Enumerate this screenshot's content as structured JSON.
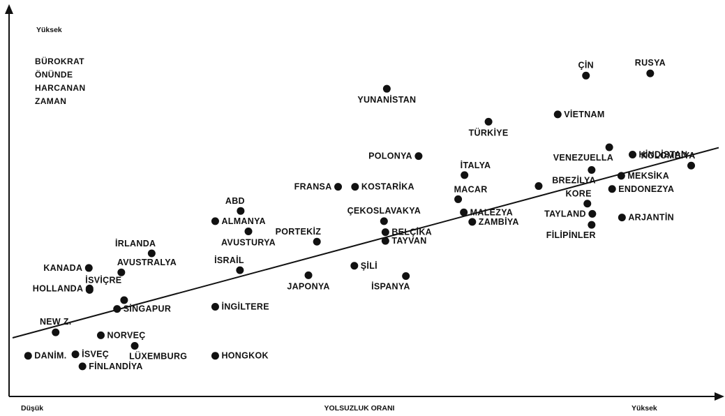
{
  "chart_data": {
    "type": "scatter",
    "xlabel": "YOLSUZLUK ORANI",
    "x_low_label": "Düşük",
    "x_high_label": "Yüksek",
    "ylabel_lines": [
      "BÜROKRAT",
      "ÖNÜNDE",
      "HARCANAN",
      "ZAMAN"
    ],
    "y_high_label": "Yüksek",
    "xlim": [
      0,
      100
    ],
    "ylim": [
      0,
      100
    ],
    "grid": false,
    "legend": "none",
    "trendline": {
      "x": [
        0,
        100
      ],
      "y": [
        14.5,
        66.5
      ]
    },
    "points": [
      {
        "label": "DANİM.",
        "x": 2.2,
        "y": 9.6,
        "label_side": "right"
      },
      {
        "label": "İSVEÇ",
        "x": 8.9,
        "y": 10.0,
        "label_side": "right"
      },
      {
        "label": "FİNLANDİYA",
        "x": 9.9,
        "y": 6.7,
        "label_side": "right"
      },
      {
        "label": "NEW Z.",
        "x": 6.1,
        "y": 16.0,
        "label_side": "above"
      },
      {
        "label": "NORVEÇ",
        "x": 12.5,
        "y": 15.2,
        "label_side": "right"
      },
      {
        "label": "LÜXEMBURG",
        "x": 17.3,
        "y": 12.3,
        "label_side": "below-right"
      },
      {
        "label": "SİNGAPUR",
        "x": 14.8,
        "y": 22.4,
        "label_side": "right"
      },
      {
        "label": "",
        "x": 15.8,
        "y": 24.8,
        "label_side": "none"
      },
      {
        "label": "İSVİÇRE",
        "x": 10.9,
        "y": 27.6,
        "label_side": "above-right"
      },
      {
        "label": "HOLLANDA",
        "x": 10.9,
        "y": 28.0,
        "label_side": "left"
      },
      {
        "label": "AVUSTRALYA",
        "x": 15.4,
        "y": 32.4,
        "label_side": "above-right"
      },
      {
        "label": "KANADA",
        "x": 10.8,
        "y": 33.6,
        "label_side": "left"
      },
      {
        "label": "İRLANDA",
        "x": 19.7,
        "y": 37.6,
        "label_side": "above-left"
      },
      {
        "label": "HONGKOK",
        "x": 28.7,
        "y": 9.6,
        "label_side": "right"
      },
      {
        "label": "İNGİLTERE",
        "x": 28.7,
        "y": 23.0,
        "label_side": "right"
      },
      {
        "label": "İSRAİL",
        "x": 32.2,
        "y": 33.0,
        "label_side": "above-left"
      },
      {
        "label": "ALMANYA",
        "x": 28.7,
        "y": 46.4,
        "label_side": "right"
      },
      {
        "label": "ABD",
        "x": 32.3,
        "y": 49.2,
        "label_side": "above-left"
      },
      {
        "label": "AVUSTURYA",
        "x": 33.4,
        "y": 43.6,
        "label_side": "below"
      },
      {
        "label": "PORTEKİZ",
        "x": 43.1,
        "y": 40.8,
        "label_side": "above-left"
      },
      {
        "label": "JAPONYA",
        "x": 41.9,
        "y": 31.6,
        "label_side": "below"
      },
      {
        "label": "FRANSA",
        "x": 46.1,
        "y": 55.8,
        "label_side": "left"
      },
      {
        "label": "KOSTARİKA",
        "x": 48.5,
        "y": 55.8,
        "label_side": "right"
      },
      {
        "label": "ŞİLİ",
        "x": 48.4,
        "y": 34.2,
        "label_side": "right"
      },
      {
        "label": "İSPANYA",
        "x": 55.7,
        "y": 31.4,
        "label_side": "below-left"
      },
      {
        "label": "ÇEKOSLAVAKYA",
        "x": 52.6,
        "y": 46.4,
        "label_side": "above"
      },
      {
        "label": "BELÇİKA",
        "x": 52.8,
        "y": 43.4,
        "label_side": "right"
      },
      {
        "label": "TAYVAN",
        "x": 52.8,
        "y": 41.0,
        "label_side": "right"
      },
      {
        "label": "YUNANİSTAN",
        "x": 53.0,
        "y": 82.6,
        "label_side": "below"
      },
      {
        "label": "POLONYA",
        "x": 57.5,
        "y": 64.2,
        "label_side": "left"
      },
      {
        "label": "TÜRKİYE",
        "x": 67.4,
        "y": 73.6,
        "label_side": "below"
      },
      {
        "label": "İTALYA",
        "x": 64.0,
        "y": 59.0,
        "label_side": "above-right"
      },
      {
        "label": "MACAR",
        "x": 63.1,
        "y": 52.4,
        "label_side": "above-right"
      },
      {
        "label": "MALEZYA",
        "x": 63.9,
        "y": 48.8,
        "label_side": "right"
      },
      {
        "label": "ZAMBİYA",
        "x": 65.1,
        "y": 46.2,
        "label_side": "right"
      },
      {
        "label": "ÇİN",
        "x": 81.2,
        "y": 86.2,
        "label_side": "above"
      },
      {
        "label": "RUSYA",
        "x": 90.3,
        "y": 86.8,
        "label_side": "above"
      },
      {
        "label": "VİETNAM",
        "x": 77.2,
        "y": 75.6,
        "label_side": "right"
      },
      {
        "label": "VENEZUELLA",
        "x": 84.5,
        "y": 66.6,
        "label_side": "below-left"
      },
      {
        "label": "HİNDİSTAN",
        "x": 87.8,
        "y": 64.6,
        "label_side": "right"
      },
      {
        "label": "KOLOMBİYA",
        "x": 96.1,
        "y": 61.6,
        "label_side": "above-left"
      },
      {
        "label": "BREZİLYA",
        "x": 82.0,
        "y": 60.4,
        "label_side": "below-left"
      },
      {
        "label": "MEKSİKA",
        "x": 86.2,
        "y": 58.8,
        "label_side": "right"
      },
      {
        "label": "",
        "x": 74.5,
        "y": 56.0,
        "label_side": "none"
      },
      {
        "label": "KORE",
        "x": 81.4,
        "y": 51.2,
        "label_side": "above-left"
      },
      {
        "label": "ENDONEZYA",
        "x": 84.9,
        "y": 55.2,
        "label_side": "right"
      },
      {
        "label": "TAYLAND",
        "x": 82.1,
        "y": 48.4,
        "label_side": "left"
      },
      {
        "label": "ARJANTİN",
        "x": 86.3,
        "y": 47.4,
        "label_side": "right"
      },
      {
        "label": "FİLİPİNLER",
        "x": 82.0,
        "y": 45.4,
        "label_side": "below-left"
      }
    ]
  }
}
